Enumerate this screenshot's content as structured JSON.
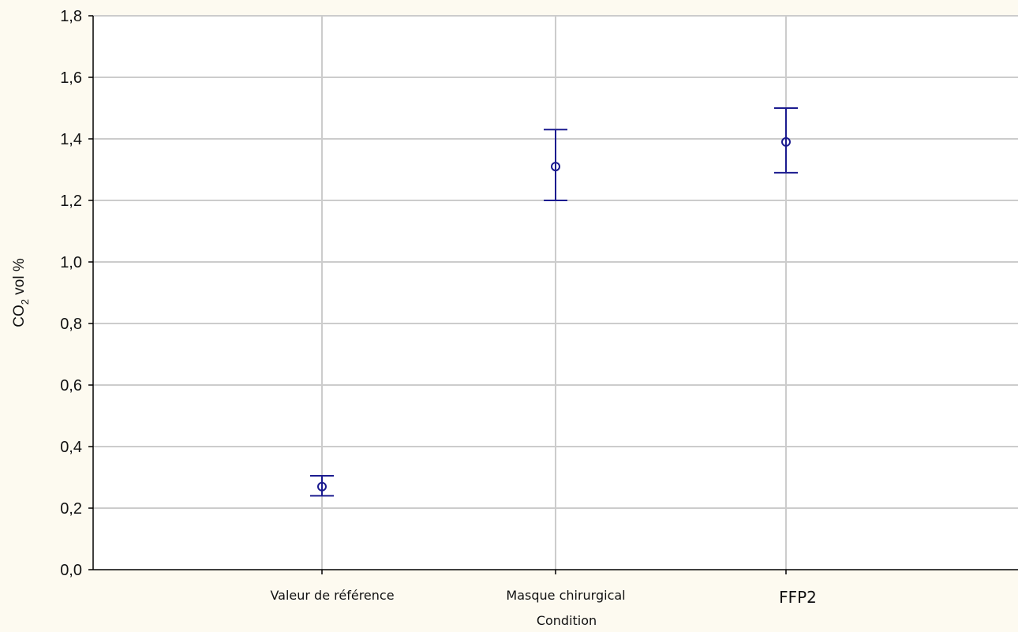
{
  "chart_data": {
    "type": "scatter",
    "categories": [
      "Valeur de référence",
      "Masque chirurgical",
      "FFP2"
    ],
    "series": [
      {
        "values": [
          0.27,
          1.31,
          1.39
        ],
        "error_low": [
          0.24,
          1.2,
          1.29
        ],
        "error_high": [
          0.305,
          1.43,
          1.5
        ]
      }
    ],
    "xlabel": "Condition",
    "ylabel": {
      "main": "CO",
      "sub": "2",
      "suffix": " vol %"
    },
    "ylim": [
      0.0,
      1.8
    ],
    "yticks": [
      {
        "value": 0.0,
        "label": "0,0"
      },
      {
        "value": 0.2,
        "label": "0,2"
      },
      {
        "value": 0.4,
        "label": "0,4"
      },
      {
        "value": 0.6,
        "label": "0,6"
      },
      {
        "value": 0.8,
        "label": "0,8"
      },
      {
        "value": 1.0,
        "label": "1,0"
      },
      {
        "value": 1.2,
        "label": "1,2"
      },
      {
        "value": 1.4,
        "label": "1,4"
      },
      {
        "value": 1.6,
        "label": "1,6"
      },
      {
        "value": 1.8,
        "label": "1,8"
      }
    ],
    "grid": true,
    "colors": {
      "marker": "#1b1b8f",
      "grid": "#cccccc",
      "axis": "#000000"
    }
  }
}
